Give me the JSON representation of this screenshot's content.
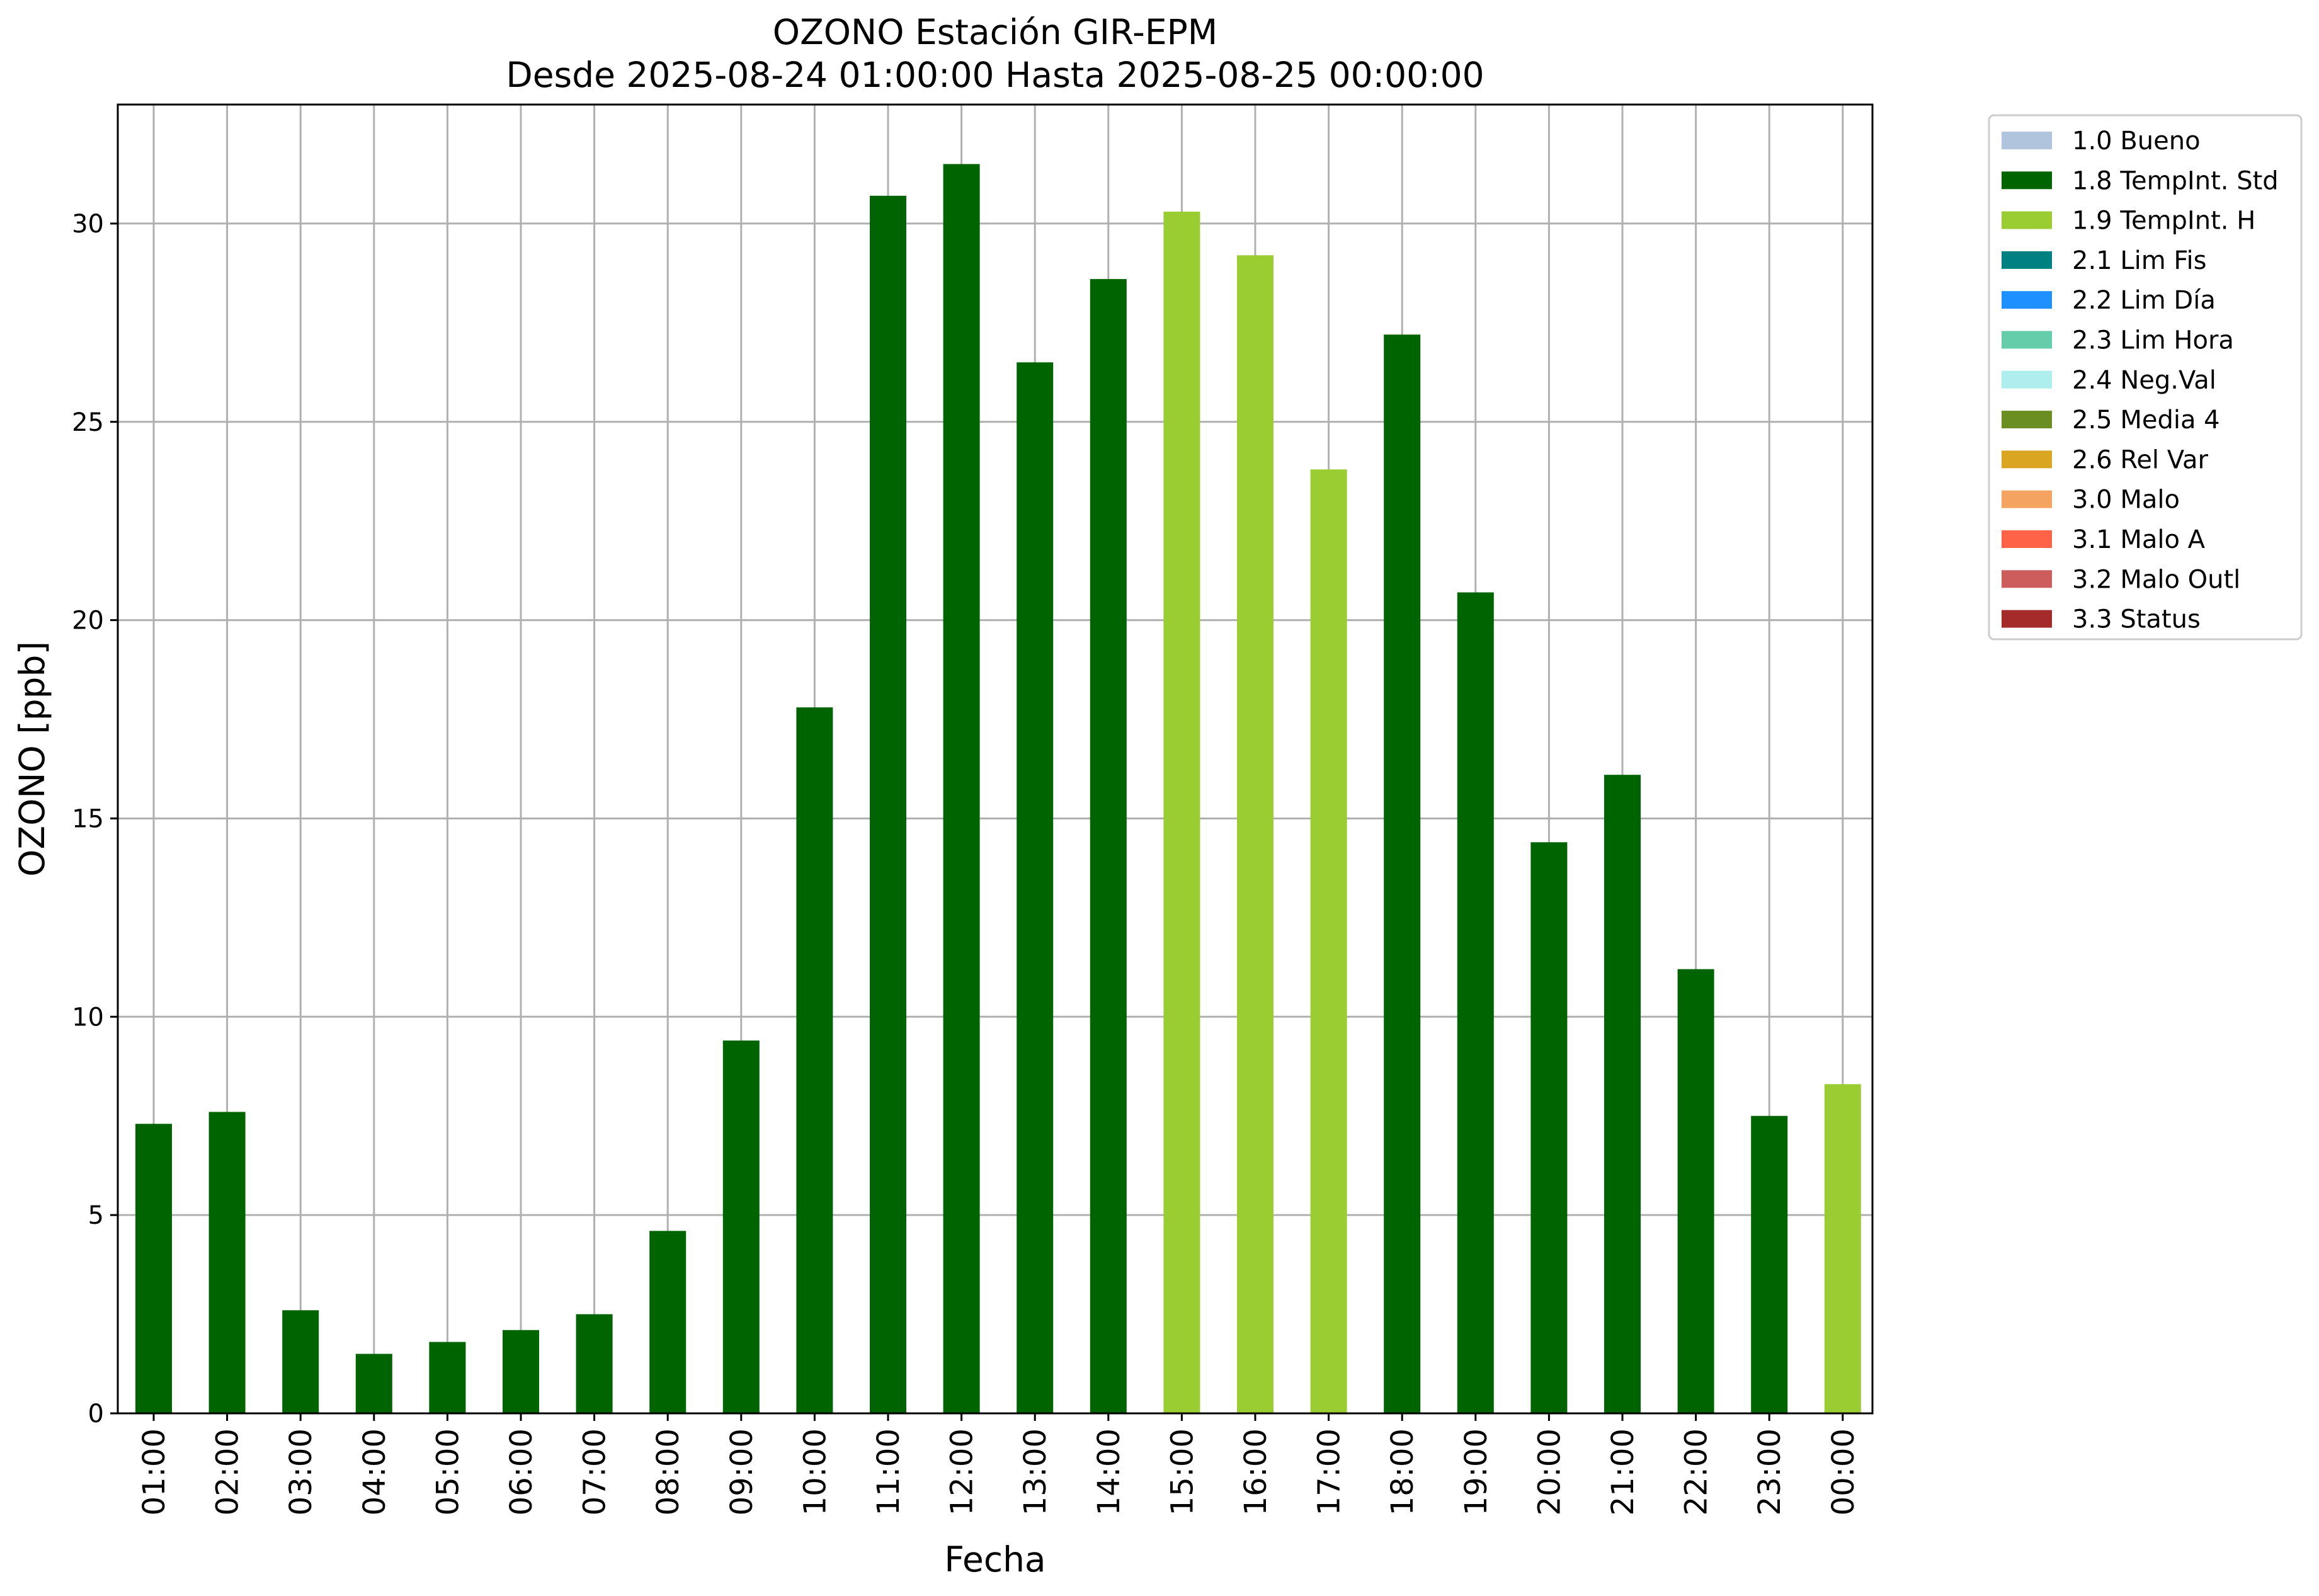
{
  "chart_data": {
    "type": "bar",
    "title": "OZONO Estación GIR-EPM",
    "subtitle": "Desde 2025-08-24 01:00:00 Hasta 2025-08-25 00:00:00",
    "xlabel": "Fecha",
    "ylabel": "OZONO [ppb]",
    "ylim": [
      0,
      33
    ],
    "yticks": [
      0,
      5,
      10,
      15,
      20,
      25,
      30
    ],
    "grid": true,
    "legend_position": "outside-top-right",
    "categories": [
      "01:00",
      "02:00",
      "03:00",
      "04:00",
      "05:00",
      "06:00",
      "07:00",
      "08:00",
      "09:00",
      "10:00",
      "11:00",
      "12:00",
      "13:00",
      "14:00",
      "15:00",
      "16:00",
      "17:00",
      "18:00",
      "19:00",
      "20:00",
      "21:00",
      "22:00",
      "23:00",
      "00:00"
    ],
    "values": [
      7.3,
      7.6,
      2.6,
      1.5,
      1.8,
      2.1,
      2.5,
      4.6,
      9.4,
      17.8,
      30.7,
      31.5,
      26.5,
      28.6,
      30.3,
      29.2,
      23.8,
      27.2,
      20.7,
      14.4,
      16.1,
      11.2,
      7.5,
      8.3
    ],
    "flags": [
      "1.8 TempInt. Std",
      "1.8 TempInt. Std",
      "1.8 TempInt. Std",
      "1.8 TempInt. Std",
      "1.8 TempInt. Std",
      "1.8 TempInt. Std",
      "1.8 TempInt. Std",
      "1.8 TempInt. Std",
      "1.8 TempInt. Std",
      "1.8 TempInt. Std",
      "1.8 TempInt. Std",
      "1.8 TempInt. Std",
      "1.8 TempInt. Std",
      "1.8 TempInt. Std",
      "1.9 TempInt. H",
      "1.9 TempInt. H",
      "1.9 TempInt. H",
      "1.8 TempInt. Std",
      "1.8 TempInt. Std",
      "1.8 TempInt. Std",
      "1.8 TempInt. Std",
      "1.8 TempInt. Std",
      "1.8 TempInt. Std",
      "1.9 TempInt. H"
    ],
    "legend": [
      {
        "label": "1.0 Bueno",
        "color": "#b0c4de"
      },
      {
        "label": "1.8 TempInt. Std",
        "color": "#006400"
      },
      {
        "label": "1.9 TempInt. H",
        "color": "#9acd32"
      },
      {
        "label": "2.1 Lim Fis",
        "color": "#008080"
      },
      {
        "label": "2.2 Lim Día",
        "color": "#1e90ff"
      },
      {
        "label": "2.3 Lim Hora",
        "color": "#66cdaa"
      },
      {
        "label": "2.4 Neg.Val",
        "color": "#afeeee"
      },
      {
        "label": "2.5 Media 4",
        "color": "#6b8e23"
      },
      {
        "label": "2.6 Rel Var",
        "color": "#daa520"
      },
      {
        "label": "3.0 Malo",
        "color": "#f4a460"
      },
      {
        "label": "3.1 Malo A",
        "color": "#ff6347"
      },
      {
        "label": "3.2 Malo Outl",
        "color": "#cd5c5c"
      },
      {
        "label": "3.3 Status",
        "color": "#a52a2a"
      }
    ]
  }
}
